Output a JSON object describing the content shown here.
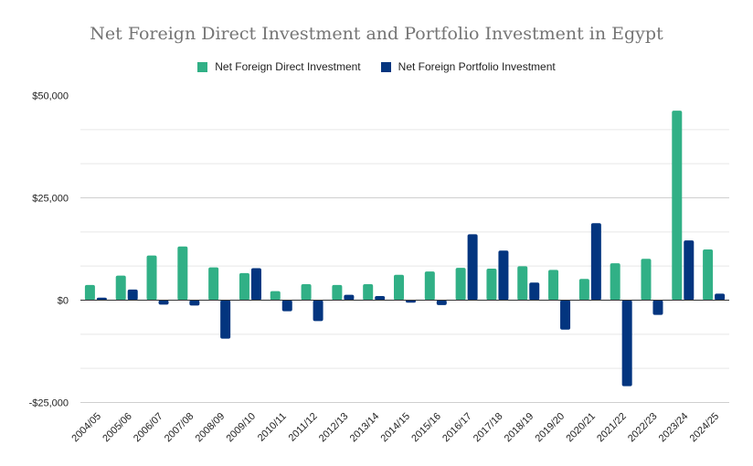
{
  "chart_data": {
    "type": "bar",
    "title": "Net Foreign Direct Investment and Portfolio Investment in Egypt",
    "xlabel": "",
    "ylabel": "",
    "ylim": [
      -28000,
      50000
    ],
    "yticks": [
      50000,
      25000,
      0,
      -25000
    ],
    "ytick_labels": [
      "$50,000",
      "$25,000",
      "$0",
      "-$25,000"
    ],
    "grid": true,
    "legend_position": "top",
    "categories": [
      "2004/05",
      "2005/06",
      "2006/07",
      "2007/08",
      "2008/09",
      "2009/10",
      "2010/11",
      "2011/12",
      "2012/13",
      "2013/14",
      "2014/15",
      "2015/16",
      "2016/17",
      "2017/18",
      "2018/19",
      "2019/20",
      "2020/21",
      "2021/22",
      "2022/23",
      "2023/24",
      "2024/25"
    ],
    "series": [
      {
        "name": "Net Foreign Direct Investment",
        "color": "#31b086",
        "values": [
          3700,
          6000,
          10900,
          13100,
          8000,
          6600,
          2200,
          3900,
          3700,
          3900,
          6200,
          7000,
          7900,
          7700,
          8300,
          7400,
          5200,
          9000,
          10100,
          46300,
          12400
        ]
      },
      {
        "name": "Net Foreign Portfolio Investment",
        "color": "#03357f",
        "values": [
          600,
          2600,
          -1100,
          -1300,
          -9400,
          7800,
          -2700,
          -5100,
          1300,
          1000,
          -600,
          -1200,
          16100,
          12100,
          4300,
          -7200,
          18800,
          -21000,
          -3600,
          14600,
          1600
        ]
      }
    ]
  }
}
